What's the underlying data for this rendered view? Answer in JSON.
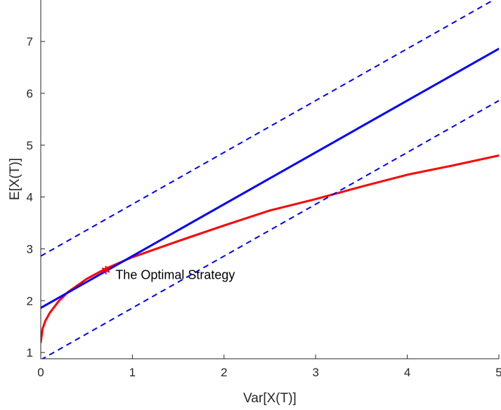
{
  "chart_data": {
    "type": "line",
    "xlabel": "Var[X(T)]",
    "ylabel": "E[X(T)]",
    "xlim": [
      0,
      5
    ],
    "ylim": [
      0.88,
      7.8
    ],
    "xticks": [
      "0",
      "1",
      "2",
      "3",
      "4",
      "5"
    ],
    "yticks": [
      "1",
      "2",
      "3",
      "4",
      "5",
      "6",
      "7"
    ],
    "grid": false,
    "series": [
      {
        "style": "solid",
        "color": "#ff0000",
        "x": [
          0,
          0.02,
          0.05,
          0.1,
          0.2,
          0.3,
          0.5,
          0.7,
          1.0,
          1.5,
          2.0,
          2.5,
          3.0,
          3.5,
          4.0,
          4.5,
          5.0
        ],
        "y": [
          1.2,
          1.46,
          1.61,
          1.77,
          2.0,
          2.17,
          2.42,
          2.61,
          2.84,
          3.15,
          3.45,
          3.74,
          3.96,
          4.2,
          4.43,
          4.61,
          4.8
        ]
      },
      {
        "style": "solid",
        "color": "#0000ff",
        "x": [
          0,
          5
        ],
        "y": [
          1.86,
          6.86
        ]
      },
      {
        "style": "dashed",
        "color": "#0000ff",
        "x": [
          0,
          5
        ],
        "y": [
          2.86,
          7.86
        ]
      },
      {
        "style": "dashed",
        "color": "#0000ff",
        "x": [
          0,
          5
        ],
        "y": [
          0.86,
          5.86
        ]
      }
    ],
    "point": {
      "x": 0.71,
      "y": 2.59,
      "marker": "*",
      "color": "#ff0000"
    },
    "annotation": {
      "text": "The Optimal Strategy",
      "x": 0.8,
      "y": 2.5
    }
  }
}
